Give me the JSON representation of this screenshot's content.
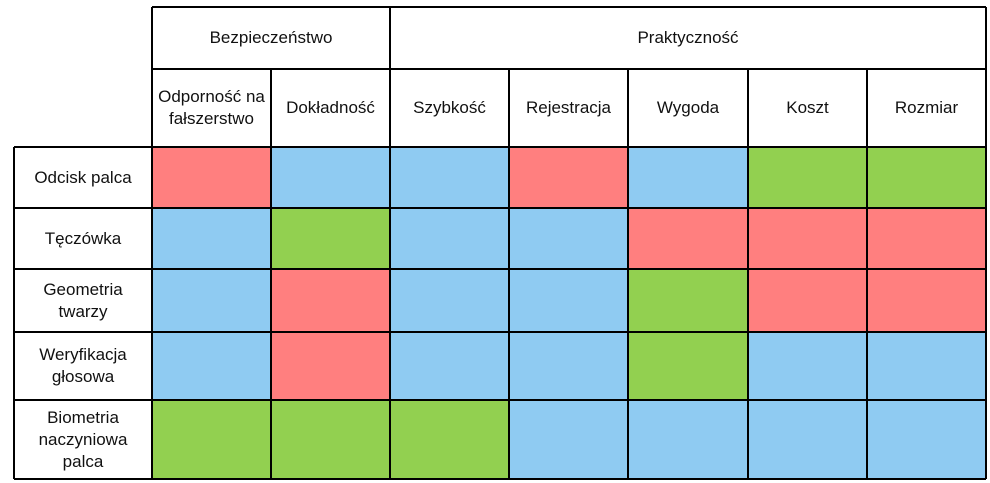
{
  "chart_data": {
    "type": "table",
    "title": "",
    "groups": [
      {
        "label": "Bezpieczeństwo",
        "span": 2
      },
      {
        "label": "Praktyczność",
        "span": 5
      }
    ],
    "columns": [
      "Odporność na fałszerstwo",
      "Dokładność",
      "Szybkość",
      "Rejestracja",
      "Wygoda",
      "Koszt",
      "Rozmiar"
    ],
    "rows": [
      {
        "label": "Odcisk palca",
        "values": [
          "red",
          "blue",
          "blue",
          "red",
          "blue",
          "green",
          "green"
        ]
      },
      {
        "label": "Tęczówka",
        "values": [
          "blue",
          "green",
          "blue",
          "blue",
          "red",
          "red",
          "red"
        ]
      },
      {
        "label": "Geometria twarzy",
        "values": [
          "blue",
          "red",
          "blue",
          "blue",
          "green",
          "red",
          "red"
        ]
      },
      {
        "label": "Weryfikacja głosowa",
        "values": [
          "blue",
          "red",
          "blue",
          "blue",
          "green",
          "blue",
          "blue"
        ]
      },
      {
        "label": "Biometria naczyniowa palca",
        "values": [
          "green",
          "green",
          "green",
          "blue",
          "blue",
          "blue",
          "blue"
        ]
      }
    ],
    "colors": {
      "red": "#FF7F7F",
      "blue": "#8FCBF2",
      "green": "#92D050"
    }
  }
}
